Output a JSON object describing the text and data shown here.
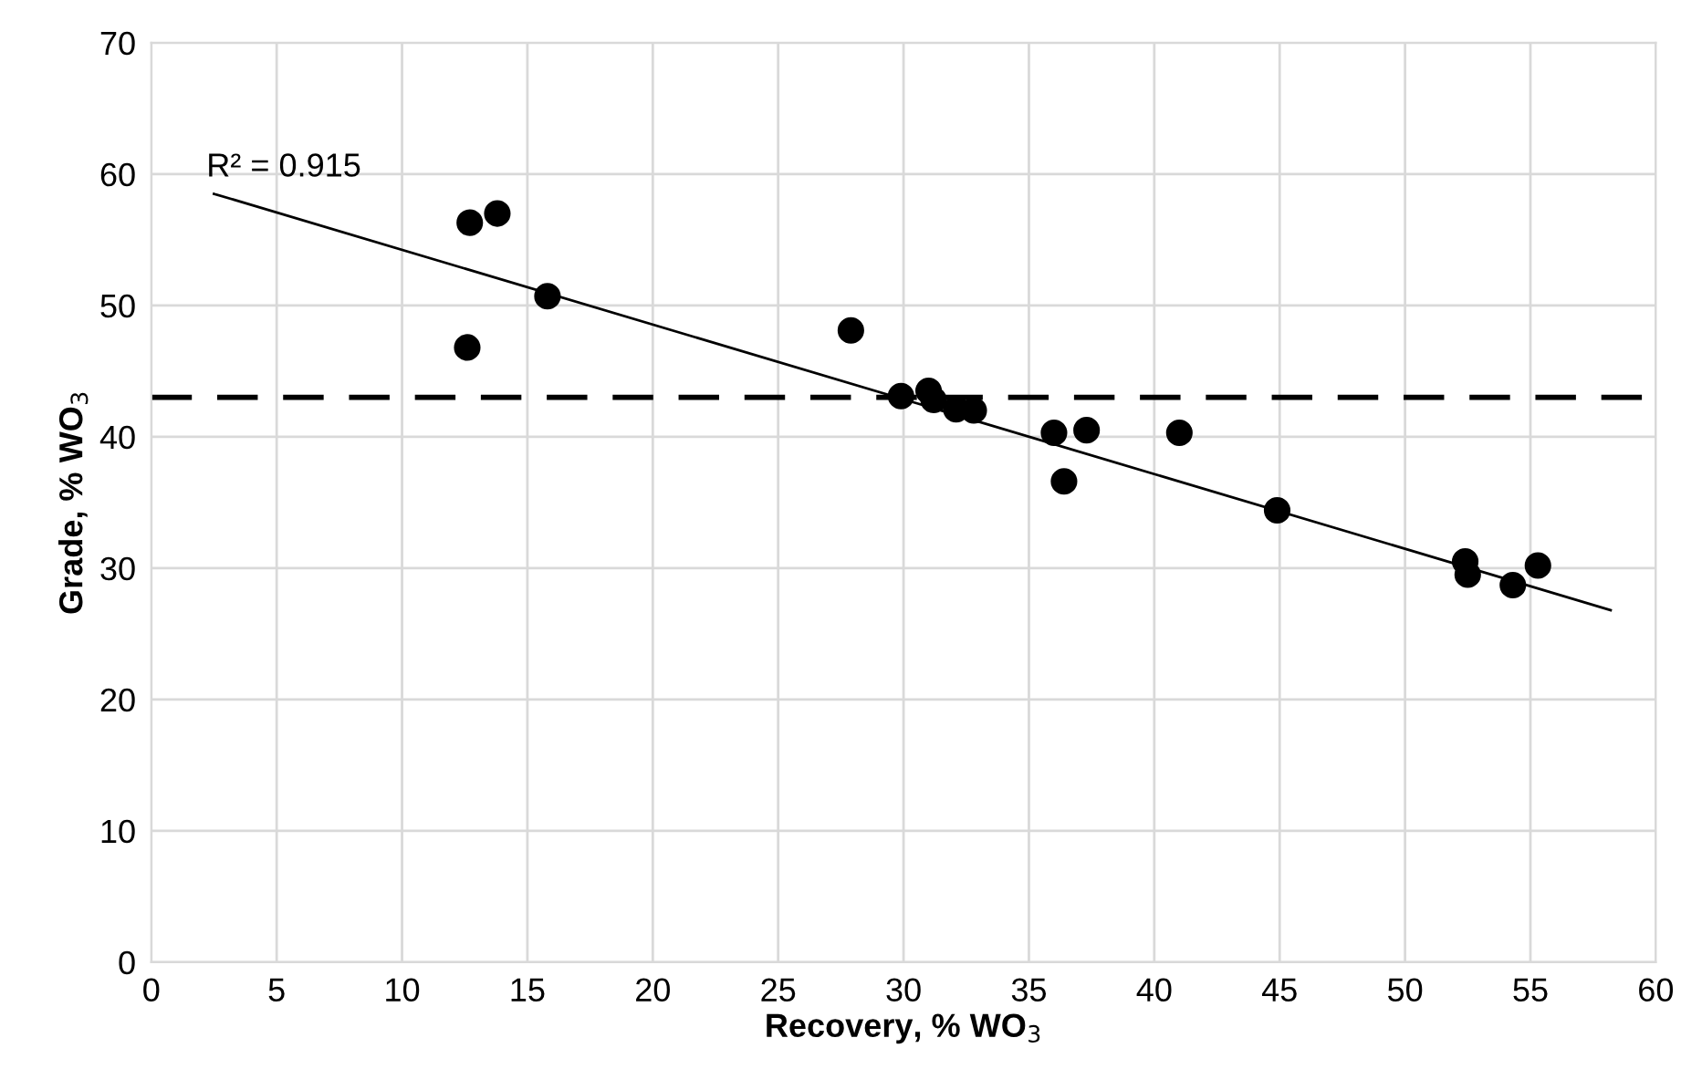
{
  "chart_data": {
    "type": "scatter",
    "xlabel": "Recovery, % WO$_{3}$",
    "ylabel": "Grade, % WO$_{3}$",
    "xlim": [
      0,
      60
    ],
    "xticks": [
      0,
      5,
      10,
      15,
      20,
      25,
      30,
      35,
      40,
      45,
      50,
      55,
      60
    ],
    "ylim": [
      0,
      70
    ],
    "yticks": [
      0,
      10,
      20,
      30,
      40,
      50,
      60,
      70
    ],
    "grid": true,
    "legend": false,
    "annotations": [
      "R² = 0.915"
    ],
    "ref_lines": [
      {
        "axis": "y",
        "value": 43,
        "color": "#000000",
        "line_style": "dashed"
      }
    ],
    "series": [
      {
        "color": "#000000",
        "marker": "circle",
        "x": [
          12.7,
          13.8,
          12.6,
          15.8,
          27.9,
          29.9,
          31.0,
          31.2,
          32.1,
          32.8,
          36.0,
          36.4,
          37.3,
          41.0,
          44.9,
          52.4,
          52.5,
          54.3,
          55.3
        ],
        "values": [
          56.3,
          57.0,
          46.8,
          50.7,
          48.1,
          43.1,
          43.5,
          42.8,
          42.1,
          42.0,
          40.3,
          36.6,
          40.5,
          40.3,
          34.4,
          30.5,
          29.5,
          28.7,
          30.2
        ]
      },
      {
        "type": "line",
        "color": "#000000",
        "marker": "none",
        "line_style": "solid",
        "x": [
          2.5,
          58.2
        ],
        "values": [
          58.5,
          26.8
        ]
      }
    ]
  }
}
